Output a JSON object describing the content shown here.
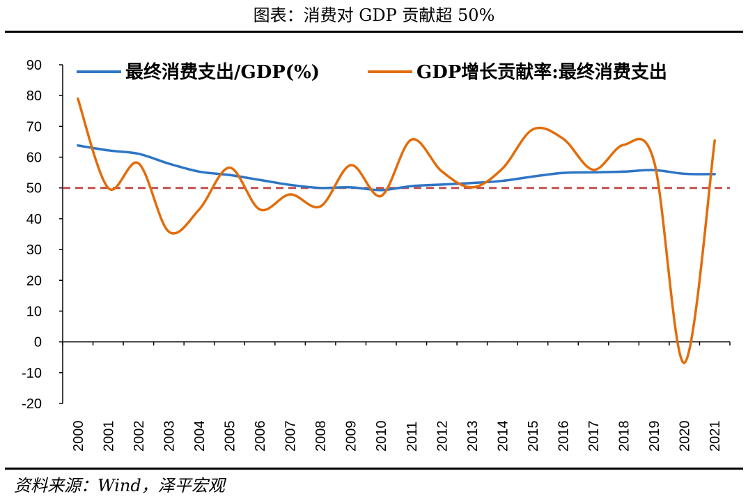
{
  "title": "图表：消费对 GDP 贡献超 50%",
  "source": "资料来源：Wind，泽平宏观",
  "chart_data": {
    "type": "line",
    "x": [
      "2000",
      "2001",
      "2002",
      "2003",
      "2004",
      "2005",
      "2006",
      "2007",
      "2008",
      "2009",
      "2010",
      "2011",
      "2012",
      "2013",
      "2014",
      "2015",
      "2016",
      "2017",
      "2018",
      "2019",
      "2020",
      "2021"
    ],
    "series": [
      {
        "name": "最终消费支出/GDP(%)",
        "color": "#2e75c5",
        "values": [
          63.8,
          62.2,
          61.1,
          57.9,
          55.3,
          54.2,
          52.6,
          51.0,
          50.0,
          50.2,
          49.3,
          50.6,
          51.1,
          51.6,
          52.3,
          53.7,
          54.9,
          55.1,
          55.3,
          55.8,
          54.6,
          54.5
        ]
      },
      {
        "name": "GDP增长贡献率:最终消费支出",
        "color": "#e36c0a",
        "values": [
          79.0,
          50.0,
          58.0,
          35.8,
          43.0,
          56.6,
          43.0,
          47.9,
          44.0,
          57.4,
          47.4,
          65.7,
          55.4,
          50.2,
          56.3,
          69.0,
          66.0,
          55.9,
          64.0,
          58.6,
          -6.8,
          65.4
        ]
      }
    ],
    "reference_line": {
      "value": 50,
      "color": "#c0504d",
      "style": "dashed"
    },
    "ylim": [
      -20,
      90
    ],
    "yticks": [
      "-20",
      "-10",
      "0",
      "10",
      "20",
      "30",
      "40",
      "50",
      "60",
      "70",
      "80",
      "90"
    ],
    "grid": false,
    "legend": "top"
  }
}
